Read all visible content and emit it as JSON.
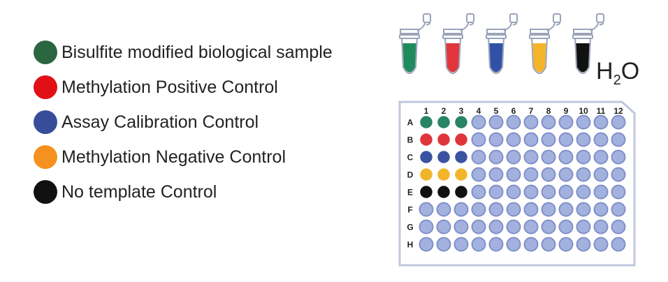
{
  "legend": [
    {
      "label": "Bisulfite modified biological sample",
      "color": "#2a6640"
    },
    {
      "label": "Methylation Positive Control",
      "color": "#e20f17"
    },
    {
      "label": "Assay Calibration Control",
      "color": "#384d9a"
    },
    {
      "label": "Methylation Negative Control",
      "color": "#f5911e"
    },
    {
      "label": "No template Control",
      "color": "#111111"
    }
  ],
  "tubes": [
    {
      "color": "#1f8a5b",
      "label": ""
    },
    {
      "color": "#e0353b",
      "label": ""
    },
    {
      "color": "#3151a6",
      "label": ""
    },
    {
      "color": "#f4b52a",
      "label": ""
    },
    {
      "color": "#111111",
      "label": "H"
    }
  ],
  "water": {
    "h": "H",
    "sub": "2",
    "o": "O"
  },
  "plate": {
    "columns": [
      "1",
      "2",
      "3",
      "4",
      "5",
      "6",
      "7",
      "8",
      "9",
      "10",
      "11",
      "12"
    ],
    "rows": [
      {
        "label": "A",
        "fill": "#278464",
        "wells": 3
      },
      {
        "label": "B",
        "fill": "#e0353b",
        "wells": 3
      },
      {
        "label": "C",
        "fill": "#3b52a0",
        "wells": 3
      },
      {
        "label": "D",
        "fill": "#f2b52a",
        "wells": 3
      },
      {
        "label": "E",
        "fill": "#111111",
        "wells": 3
      },
      {
        "label": "F",
        "fill": "",
        "wells": 0
      },
      {
        "label": "G",
        "fill": "",
        "wells": 0
      },
      {
        "label": "H",
        "fill": "",
        "wells": 0
      }
    ],
    "empty_well_fill": "#a3b1de",
    "empty_well_stroke": "#7f90c8",
    "frame_color": "#c0c7de"
  }
}
